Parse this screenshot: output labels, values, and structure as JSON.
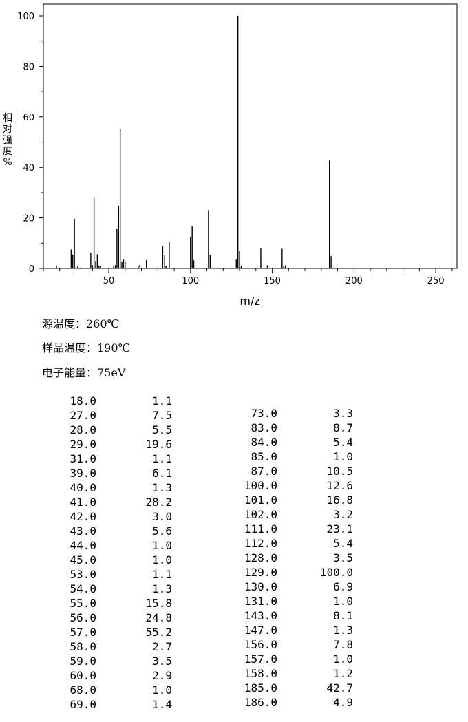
{
  "chart_data": {
    "type": "bar",
    "xlabel": "m/z",
    "ylabel_chars": [
      "相",
      "对",
      "强",
      "度",
      "%"
    ],
    "xlim": [
      10,
      263
    ],
    "ylim": [
      0,
      100
    ],
    "xticks": [
      50,
      100,
      150,
      200,
      250
    ],
    "yticks": [
      0,
      20,
      40,
      60,
      80,
      100
    ],
    "peaks": [
      [
        18,
        1.1
      ],
      [
        27,
        7.5
      ],
      [
        28,
        5.5
      ],
      [
        29,
        19.6
      ],
      [
        31,
        1.1
      ],
      [
        39,
        6.1
      ],
      [
        40,
        1.3
      ],
      [
        41,
        28.2
      ],
      [
        42,
        3.0
      ],
      [
        43,
        5.6
      ],
      [
        44,
        1.0
      ],
      [
        45,
        1.0
      ],
      [
        53,
        1.1
      ],
      [
        54,
        1.3
      ],
      [
        55,
        15.8
      ],
      [
        56,
        24.8
      ],
      [
        57,
        55.2
      ],
      [
        58,
        2.7
      ],
      [
        59,
        3.5
      ],
      [
        60,
        2.9
      ],
      [
        68,
        1.0
      ],
      [
        69,
        1.4
      ],
      [
        73,
        3.3
      ],
      [
        83,
        8.7
      ],
      [
        84,
        5.4
      ],
      [
        85,
        1.0
      ],
      [
        87,
        10.5
      ],
      [
        100,
        12.6
      ],
      [
        101,
        16.8
      ],
      [
        102,
        3.2
      ],
      [
        111,
        23.1
      ],
      [
        112,
        5.4
      ],
      [
        128,
        3.5
      ],
      [
        129,
        100.0
      ],
      [
        130,
        6.9
      ],
      [
        131,
        1.0
      ],
      [
        143,
        8.1
      ],
      [
        147,
        1.3
      ],
      [
        156,
        7.8
      ],
      [
        157,
        1.0
      ],
      [
        158,
        1.2
      ],
      [
        185,
        42.7
      ],
      [
        186,
        4.9
      ]
    ]
  },
  "conditions": {
    "source_temp": "源温度：260℃",
    "sample_temp": "样品温度：190℃",
    "electron_energy": "电子能量：75eV"
  },
  "table_left": [
    [
      "18.0",
      "1.1"
    ],
    [
      "27.0",
      "7.5"
    ],
    [
      "28.0",
      "5.5"
    ],
    [
      "29.0",
      "19.6"
    ],
    [
      "31.0",
      "1.1"
    ],
    [
      "39.0",
      "6.1"
    ],
    [
      "40.0",
      "1.3"
    ],
    [
      "41.0",
      "28.2"
    ],
    [
      "42.0",
      "3.0"
    ],
    [
      "43.0",
      "5.6"
    ],
    [
      "44.0",
      "1.0"
    ],
    [
      "45.0",
      "1.0"
    ],
    [
      "53.0",
      "1.1"
    ],
    [
      "54.0",
      "1.3"
    ],
    [
      "55.0",
      "15.8"
    ],
    [
      "56.0",
      "24.8"
    ],
    [
      "57.0",
      "55.2"
    ],
    [
      "58.0",
      "2.7"
    ],
    [
      "59.0",
      "3.5"
    ],
    [
      "60.0",
      "2.9"
    ],
    [
      "68.0",
      "1.0"
    ],
    [
      "69.0",
      "1.4"
    ]
  ],
  "table_right": [
    [
      "73.0",
      "3.3"
    ],
    [
      "83.0",
      "8.7"
    ],
    [
      "84.0",
      "5.4"
    ],
    [
      "85.0",
      "1.0"
    ],
    [
      "87.0",
      "10.5"
    ],
    [
      "100.0",
      "12.6"
    ],
    [
      "101.0",
      "16.8"
    ],
    [
      "102.0",
      "3.2"
    ],
    [
      "111.0",
      "23.1"
    ],
    [
      "112.0",
      "5.4"
    ],
    [
      "128.0",
      "3.5"
    ],
    [
      "129.0",
      "100.0"
    ],
    [
      "130.0",
      "6.9"
    ],
    [
      "131.0",
      "1.0"
    ],
    [
      "143.0",
      "8.1"
    ],
    [
      "147.0",
      "1.3"
    ],
    [
      "156.0",
      "7.8"
    ],
    [
      "157.0",
      "1.0"
    ],
    [
      "158.0",
      "1.2"
    ],
    [
      "185.0",
      "42.7"
    ],
    [
      "186.0",
      "4.9"
    ]
  ]
}
